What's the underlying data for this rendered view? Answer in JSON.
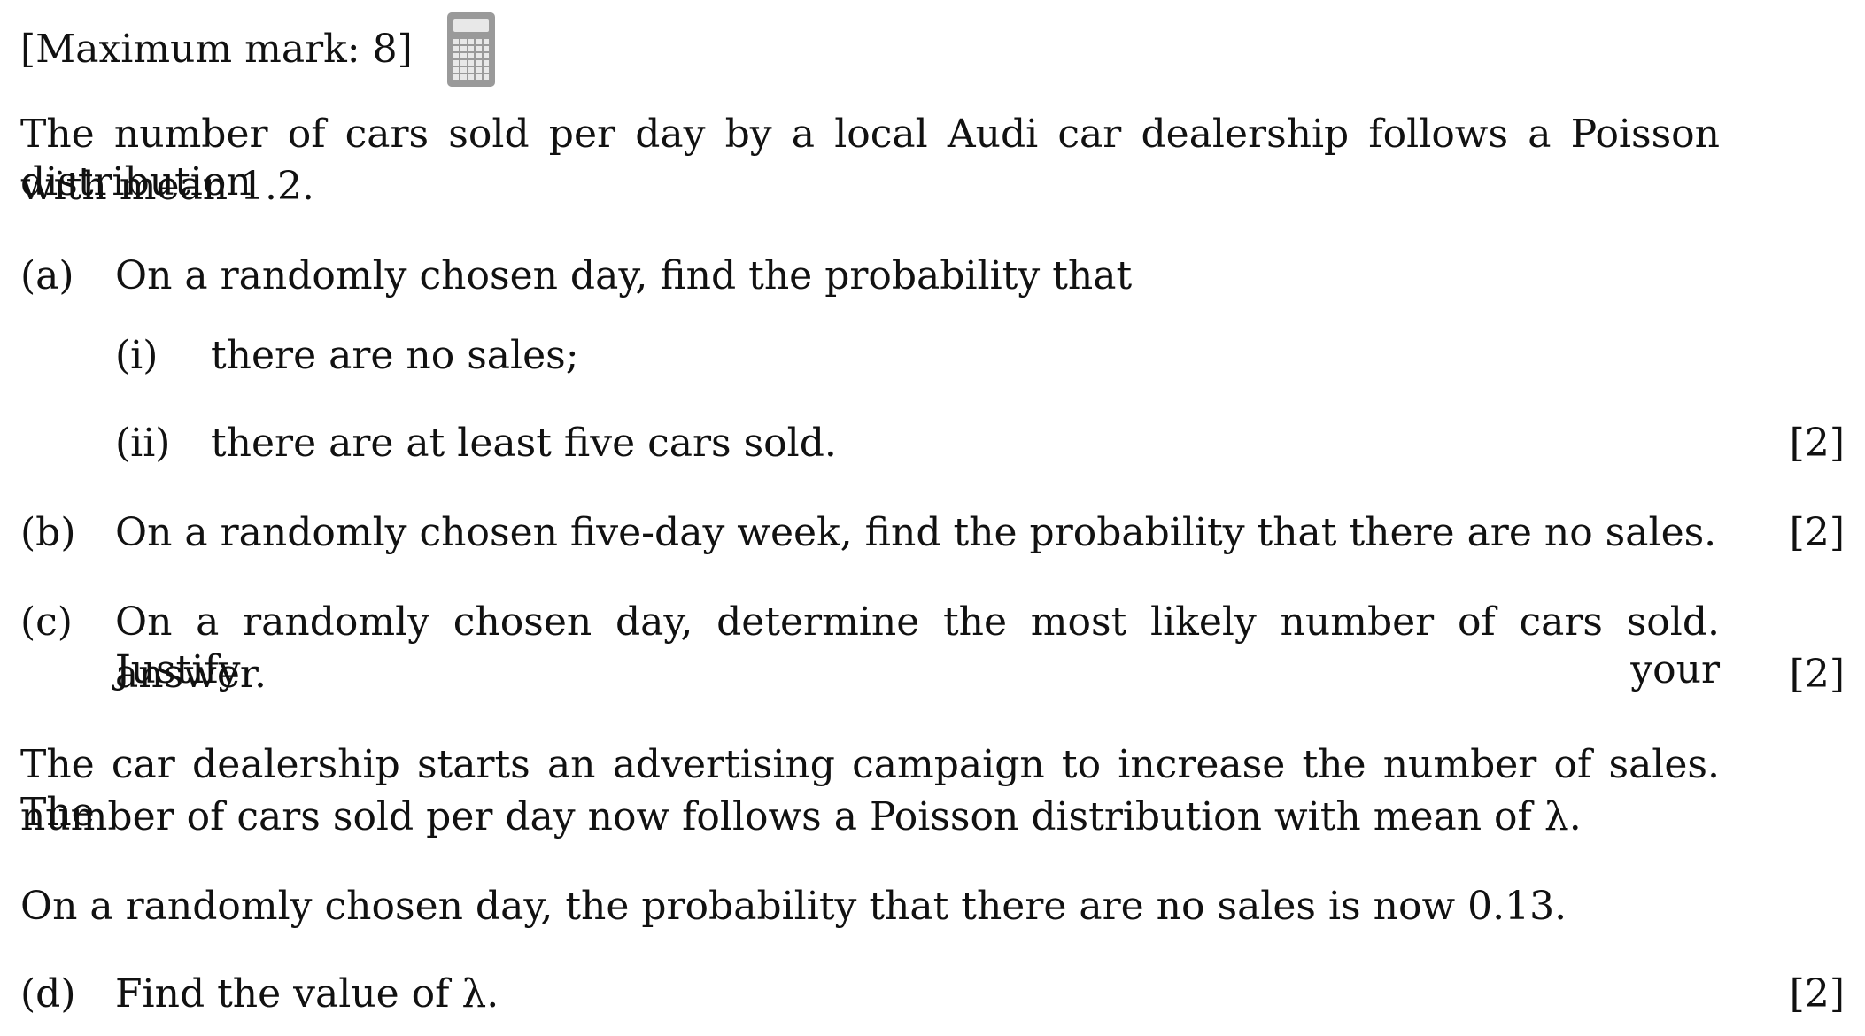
{
  "header": {
    "max_mark": "[Maximum mark: 8]",
    "calculator_icon": "calculator-icon"
  },
  "intro": {
    "line1": "The number of cars sold per day by a local Audi car dealership follows a Poisson distribution",
    "line2": "with mean 1.2."
  },
  "part_a": {
    "label": "(a)",
    "text": "On a randomly chosen day, find the probability that",
    "sub_i": {
      "label": "(i)",
      "text": "there are no sales;"
    },
    "sub_ii": {
      "label": "(ii)",
      "text": "there are at least five cars sold.",
      "marks": "[2]"
    }
  },
  "part_b": {
    "label": "(b)",
    "text": "On a randomly chosen five-day week, find the probability that there are no sales.",
    "marks": "[2]"
  },
  "part_c": {
    "label": "(c)",
    "line1": "On a randomly chosen day, determine the most likely number of cars sold. Justify your",
    "line2": "answer.",
    "marks": "[2]"
  },
  "campaign": {
    "line1": "The car dealership starts an advertising campaign to increase the number of sales.  The",
    "line2": "number of cars sold per day now follows a Poisson distribution with mean of λ."
  },
  "condition": {
    "text": "On a randomly chosen day, the probability that there are no sales is now 0.13."
  },
  "part_d": {
    "label": "(d)",
    "text": "Find the value of λ.",
    "marks": "[2]"
  }
}
